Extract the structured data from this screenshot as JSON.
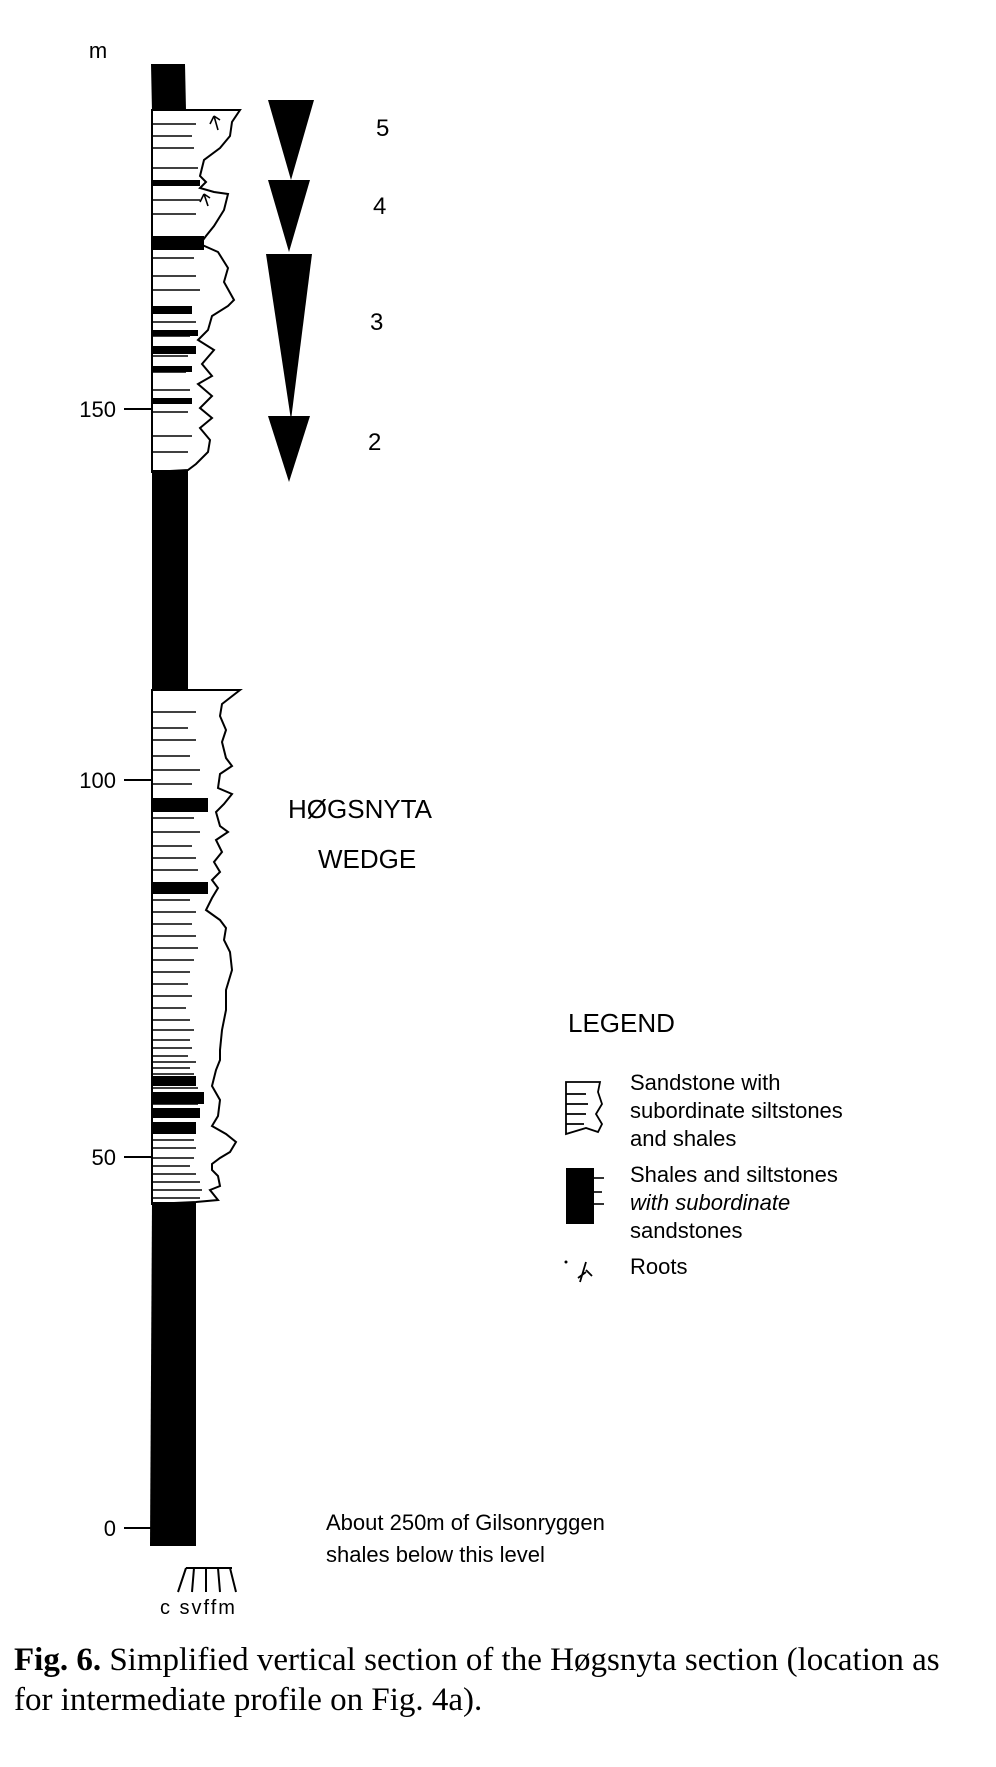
{
  "axis": {
    "unit": "m",
    "ticks": [
      {
        "value": 0,
        "label": "0"
      },
      {
        "value": 50,
        "label": "50"
      },
      {
        "value": 100,
        "label": "100"
      },
      {
        "value": 150,
        "label": "150"
      }
    ]
  },
  "grain_scale": {
    "label": "c svffm"
  },
  "cycles": [
    {
      "label": "5"
    },
    {
      "label": "4"
    },
    {
      "label": "3"
    },
    {
      "label": "2"
    }
  ],
  "unit_name": {
    "line1": "HØGSNYTA",
    "line2": "WEDGE"
  },
  "legend": {
    "title": "LEGEND",
    "items": [
      {
        "lines": [
          "Sandstone with",
          "subordinate siltstones",
          "and shales"
        ]
      },
      {
        "lines": [
          "Shales and siltstones",
          "with subordinate",
          "sandstones"
        ]
      },
      {
        "lines": [
          "Roots"
        ]
      }
    ]
  },
  "note": {
    "line1": "About 250m of Gilsonryggen",
    "line2": "shales below this level"
  },
  "caption": {
    "label": "Fig. 6.",
    "text": " Simplified vertical section of the Høgsnyta section (location as for intermediate profile on Fig. 4a)."
  }
}
